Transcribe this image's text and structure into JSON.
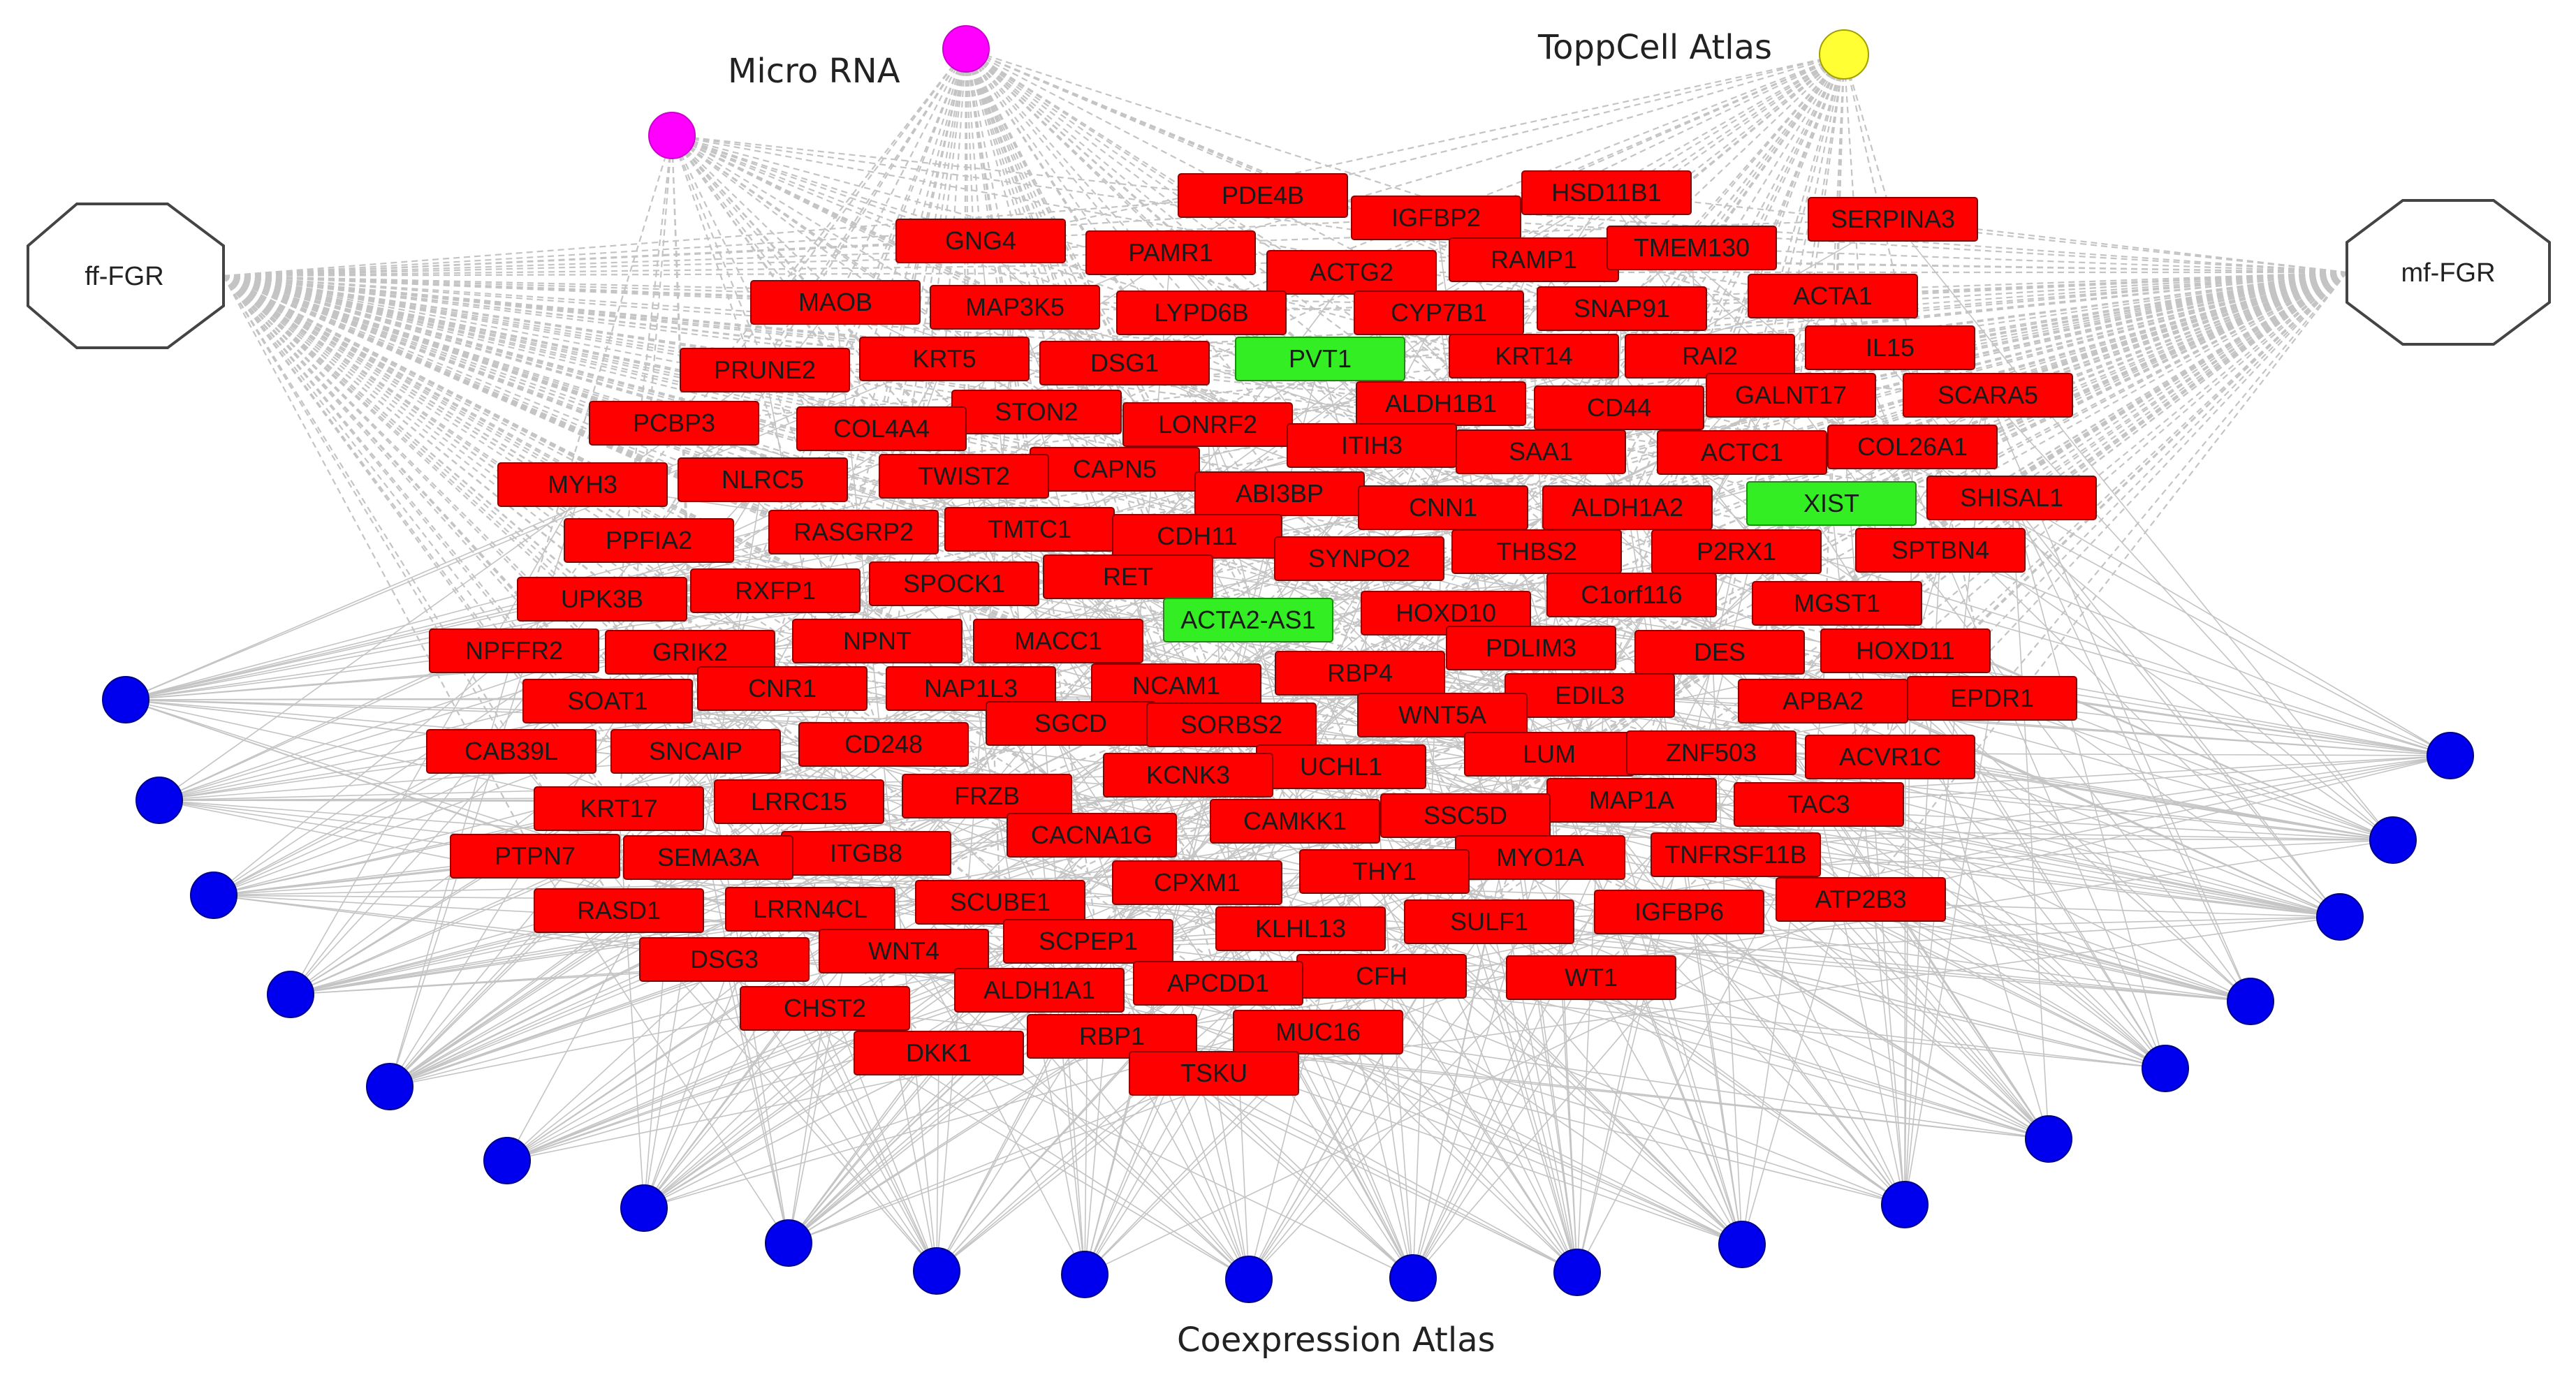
{
  "colors": {
    "gene": "#ff0000",
    "gene_border": "#8b0000",
    "lncrna": "#33ee22",
    "lncrna_border": "#208a10",
    "microrna": "#ff00ff",
    "toppcell": "#ffff33",
    "coexpression": "#0000ee",
    "edge": "#c4c4c4",
    "hub_fill": "#ffffff",
    "hub_border": "#444444"
  },
  "labels": {
    "micro_rna": "Micro RNA",
    "toppcell": "ToppCell Atlas",
    "coexpression": "Coexpression Atlas"
  },
  "hubs": {
    "ff_fgr": "ff-FGR",
    "mf_fgr": "mf-FGR"
  },
  "genes": [
    "PDE4B",
    "HSD11B1",
    "IGFBP2",
    "SERPINA3",
    "GNG4",
    "PAMR1",
    "RAMP1",
    "TMEM130",
    "ACTG2",
    "MAOB",
    "MAP3K5",
    "LYPD6B",
    "CYP7B1",
    "SNAP91",
    "ACTA1",
    "PVT1",
    "KRT5",
    "DSG1",
    "PRUNE2",
    "KRT14",
    "RAI2",
    "IL15",
    "ALDH1B1",
    "CD44",
    "GALNT17",
    "SCARA5",
    "STON2",
    "PCBP3",
    "COL4A4",
    "LONRF2",
    "ITIH3",
    "SAA1",
    "ACTC1",
    "COL26A1",
    "CAPN5",
    "TWIST2",
    "NLRC5",
    "MYH3",
    "ABI3BP",
    "CNN1",
    "ALDH1A2",
    "XIST",
    "SHISAL1",
    "PPFIA2",
    "RASGRP2",
    "TMTC1",
    "CDH11",
    "SYNPO2",
    "THBS2",
    "P2RX1",
    "SPTBN4",
    "RET",
    "UPK3B",
    "RXFP1",
    "SPOCK1",
    "C1orf116",
    "MGST1",
    "ACTA2-AS1",
    "HOXD10",
    "NPFFR2",
    "GRIK2",
    "NPNT",
    "MACC1",
    "PDLIM3",
    "DES",
    "HOXD11",
    "RBP4",
    "SOAT1",
    "CNR1",
    "NAP1L3",
    "NCAM1",
    "EDIL3",
    "APBA2",
    "EPDR1",
    "WNT5A",
    "SGCD",
    "SORBS2",
    "CD248",
    "CAB39L",
    "SNCAIP",
    "LUM",
    "ZNF503",
    "ACVR1C",
    "UCHL1",
    "KCNK3",
    "FRZB",
    "MAP1A",
    "TAC3",
    "LRRC15",
    "KRT17",
    "SSC5D",
    "CAMKK1",
    "CACNA1G",
    "ITGB8",
    "MYO1A",
    "TNFRSF11B",
    "PTPN7",
    "SEMA3A",
    "THY1",
    "CPXM1",
    "SCUBE1",
    "ATP2B3",
    "IGFBP6",
    "RASD1",
    "LRRN4CL",
    "SULF1",
    "KLHL13",
    "SCPEP1",
    "WNT4",
    "DSG3",
    "CFH",
    "WT1",
    "APCDD1",
    "ALDH1A1",
    "CHST2",
    "MUC16",
    "RBP1",
    "DKK1",
    "TSKU"
  ],
  "lncrna": [
    "PVT1",
    "XIST",
    "ACTA2-AS1"
  ]
}
